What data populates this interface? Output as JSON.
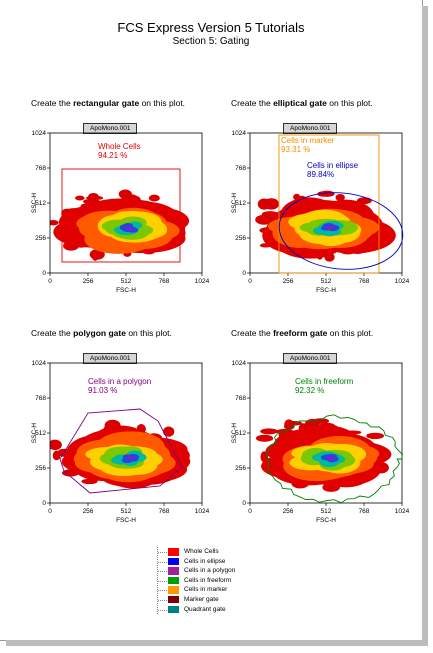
{
  "document": {
    "title": "FCS Express Version 5 Tutorials",
    "subtitle": "Section 5: Gating"
  },
  "plots": [
    {
      "instruction_pre": "Create the ",
      "instruction_bold": "rectangular gate",
      "instruction_post": " on this plot.",
      "tag": "ApoMono.001",
      "xlabel": "FSC-H",
      "ylabel": "SSC-H",
      "xticks": [
        "0",
        "256",
        "512",
        "768",
        "1024"
      ],
      "yticks": [
        "0",
        "256",
        "512",
        "768",
        "1024"
      ],
      "gate_label": "Whole Cells",
      "gate_value": "94.21 %",
      "gate_color": "#e00000"
    },
    {
      "instruction_pre": "Create the ",
      "instruction_bold": "elliptical gate",
      "instruction_post": " on this plot.",
      "tag": "ApoMono.001",
      "xlabel": "FSC-H",
      "ylabel": "SSC-H",
      "xticks": [
        "0",
        "256",
        "512",
        "768",
        "1024"
      ],
      "yticks": [
        "0",
        "256",
        "512",
        "768",
        "1024"
      ],
      "gate_label": "Cells in marker",
      "gate_value": "93.31 %",
      "gate_color": "#f09000",
      "gate2_label": "Cells in ellipse",
      "gate2_value": "89.84%",
      "gate2_color": "#0000c0"
    },
    {
      "instruction_pre": "Create the ",
      "instruction_bold": "polygon gate",
      "instruction_post": " on this plot.",
      "tag": "ApoMono.001",
      "xlabel": "FSC-H",
      "ylabel": "SSC-H",
      "xticks": [
        "0",
        "256",
        "512",
        "768",
        "1024"
      ],
      "yticks": [
        "0",
        "256",
        "512",
        "768",
        "1024"
      ],
      "gate_label": "Cells in a polygon",
      "gate_value": "91.03 %",
      "gate_color": "#800080"
    },
    {
      "instruction_pre": "Create the ",
      "instruction_bold": "freeform gate",
      "instruction_post": " on this plot.",
      "tag": "ApoMono.001",
      "xlabel": "FSC-H",
      "ylabel": "SSC-H",
      "xticks": [
        "0",
        "256",
        "512",
        "768",
        "1024"
      ],
      "yticks": [
        "0",
        "256",
        "512",
        "768",
        "1024"
      ],
      "gate_label": "Cells in freeform",
      "gate_value": "92.32 %",
      "gate_color": "#008000"
    }
  ],
  "legend": [
    {
      "label": "Whole Cells",
      "color": "#ff0000"
    },
    {
      "label": "Cells in ellipse",
      "color": "#0000ff"
    },
    {
      "label": "Cells in a polygon",
      "color": "#a020a0"
    },
    {
      "label": "Cells in freeform",
      "color": "#00a000"
    },
    {
      "label": "Cells in marker",
      "color": "#ff9900"
    },
    {
      "label": "Marker gate",
      "color": "#800000"
    },
    {
      "label": "Quadrant gate",
      "color": "#008080"
    }
  ]
}
